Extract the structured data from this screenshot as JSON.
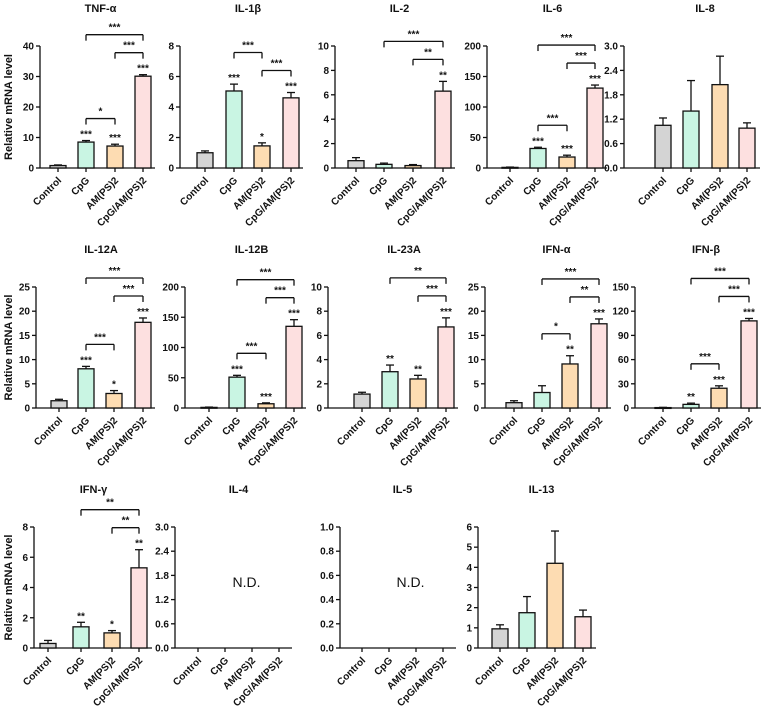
{
  "chart_data": [
    {
      "type": "bar",
      "title": "TNF-α",
      "ylim": [
        0,
        40
      ],
      "yticks": [
        "0",
        "10",
        "20",
        "30",
        "40"
      ],
      "values": [
        0.8,
        8.5,
        7.2,
        30.1
      ],
      "errors": [
        0.2,
        0.5,
        0.6,
        0.5
      ],
      "sig": [
        "",
        "***",
        "***",
        "***"
      ],
      "brackets": [
        [
          1,
          2,
          "*"
        ],
        [
          2,
          3,
          "***"
        ],
        [
          1,
          3,
          "***"
        ]
      ]
    },
    {
      "type": "bar",
      "title": "IL-1β",
      "ylim": [
        0,
        8
      ],
      "yticks": [
        "0",
        "2",
        "4",
        "6",
        "8"
      ],
      "values": [
        1.0,
        5.05,
        1.45,
        4.6
      ],
      "errors": [
        0.12,
        0.45,
        0.2,
        0.35
      ],
      "sig": [
        "",
        "***",
        "*",
        "***"
      ],
      "brackets": [
        [
          2,
          3,
          "***"
        ],
        [
          1,
          2,
          "***"
        ]
      ]
    },
    {
      "type": "bar",
      "title": "IL-2",
      "ylim": [
        0,
        10
      ],
      "yticks": [
        "0",
        "2",
        "4",
        "6",
        "8",
        "10"
      ],
      "values": [
        0.6,
        0.3,
        0.2,
        6.3
      ],
      "errors": [
        0.25,
        0.1,
        0.08,
        0.8
      ],
      "sig": [
        "",
        "",
        "",
        "**"
      ],
      "brackets": [
        [
          2,
          3,
          "**"
        ],
        [
          1,
          3,
          "***"
        ]
      ]
    },
    {
      "type": "bar",
      "title": "IL-6",
      "ylim": [
        0,
        200
      ],
      "yticks": [
        "0",
        "50",
        "100",
        "150",
        "200"
      ],
      "values": [
        1,
        32,
        18,
        131
      ],
      "errors": [
        0.5,
        2,
        3,
        5
      ],
      "sig": [
        "",
        "***",
        "***",
        "***"
      ],
      "brackets": [
        [
          1,
          2,
          "***"
        ],
        [
          2,
          3,
          "***"
        ],
        [
          1,
          3,
          "***"
        ]
      ]
    },
    {
      "type": "bar",
      "title": "IL-8",
      "ylim": [
        0,
        3
      ],
      "yticks": [
        "0.0",
        "0.6",
        "1.2",
        "1.8",
        "2.4",
        "3.0"
      ],
      "values": [
        1.05,
        1.4,
        2.05,
        0.98
      ],
      "errors": [
        0.18,
        0.75,
        0.7,
        0.13
      ],
      "sig": [
        "",
        "",
        "",
        ""
      ],
      "brackets": []
    },
    {
      "type": "bar",
      "title": "IL-12A",
      "ylim": [
        0,
        25
      ],
      "yticks": [
        "0",
        "5",
        "10",
        "15",
        "20",
        "25"
      ],
      "values": [
        1.5,
        8.1,
        3.0,
        17.7
      ],
      "errors": [
        0.3,
        0.5,
        0.6,
        0.9
      ],
      "sig": [
        "",
        "***",
        "*",
        "***"
      ],
      "brackets": [
        [
          1,
          2,
          "***"
        ],
        [
          2,
          3,
          "***"
        ],
        [
          1,
          3,
          "***"
        ]
      ]
    },
    {
      "type": "bar",
      "title": "IL-12B",
      "ylim": [
        0,
        200
      ],
      "yticks": [
        "0",
        "50",
        "100",
        "150",
        "200"
      ],
      "values": [
        1,
        51,
        7,
        135
      ],
      "errors": [
        0.5,
        3,
        1.5,
        11
      ],
      "sig": [
        "",
        "***",
        "***",
        "***"
      ],
      "brackets": [
        [
          1,
          2,
          "***"
        ],
        [
          2,
          3,
          "***"
        ],
        [
          1,
          3,
          "***"
        ]
      ]
    },
    {
      "type": "bar",
      "title": "IL-23A",
      "ylim": [
        0,
        10
      ],
      "yticks": [
        "0",
        "2",
        "4",
        "6",
        "8",
        "10"
      ],
      "values": [
        1.15,
        3.0,
        2.4,
        6.7
      ],
      "errors": [
        0.15,
        0.55,
        0.3,
        0.75
      ],
      "sig": [
        "",
        "**",
        "**",
        "***"
      ],
      "brackets": [
        [
          2,
          3,
          "***"
        ],
        [
          1,
          3,
          "**"
        ]
      ]
    },
    {
      "type": "bar",
      "title": "IFN-α",
      "ylim": [
        0,
        25
      ],
      "yticks": [
        "0",
        "5",
        "10",
        "15",
        "20",
        "25"
      ],
      "values": [
        1.1,
        3.2,
        9.1,
        17.4
      ],
      "errors": [
        0.4,
        1.4,
        1.7,
        1.0
      ],
      "sig": [
        "",
        "",
        "**",
        "***"
      ],
      "brackets": [
        [
          1,
          2,
          "*"
        ],
        [
          2,
          3,
          "**"
        ],
        [
          1,
          3,
          "***"
        ]
      ]
    },
    {
      "type": "bar",
      "title": "IFN-β",
      "ylim": [
        0,
        150
      ],
      "yticks": [
        "0",
        "30",
        "60",
        "90",
        "120",
        "150"
      ],
      "values": [
        0.5,
        4.5,
        24.5,
        108
      ],
      "errors": [
        0.3,
        1.5,
        3,
        3
      ],
      "sig": [
        "",
        "**",
        "***",
        "***"
      ],
      "brackets": [
        [
          1,
          2,
          "***"
        ],
        [
          2,
          3,
          "***"
        ],
        [
          1,
          3,
          "***"
        ]
      ]
    },
    {
      "type": "bar",
      "title": "IFN-γ",
      "ylim": [
        0,
        8
      ],
      "yticks": [
        "0",
        "2",
        "4",
        "6",
        "8"
      ],
      "values": [
        0.3,
        1.4,
        1.0,
        5.3
      ],
      "errors": [
        0.2,
        0.3,
        0.15,
        1.2
      ],
      "sig": [
        "",
        "**",
        "*",
        "**"
      ],
      "brackets": [
        [
          2,
          3,
          "**"
        ],
        [
          1,
          3,
          "**"
        ]
      ]
    },
    {
      "type": "bar",
      "title": "IL-4",
      "ylim": [
        0,
        3
      ],
      "yticks": [
        "0.0",
        "0.6",
        "1.2",
        "1.8",
        "2.4",
        "3.0"
      ],
      "values": [],
      "errors": [],
      "sig": [],
      "brackets": [],
      "annotation": "N.D."
    },
    {
      "type": "bar",
      "title": "IL-5",
      "ylim": [
        0,
        1
      ],
      "yticks": [
        "0.0",
        "0.2",
        "0.4",
        "0.6",
        "0.8",
        "1.0"
      ],
      "values": [],
      "errors": [],
      "sig": [],
      "brackets": [],
      "annotation": "N.D."
    },
    {
      "type": "bar",
      "title": "IL-13",
      "ylim": [
        0,
        6
      ],
      "yticks": [
        "0",
        "1",
        "2",
        "3",
        "4",
        "5",
        "6"
      ],
      "values": [
        0.95,
        1.75,
        4.2,
        1.55
      ],
      "errors": [
        0.2,
        0.8,
        1.6,
        0.33
      ],
      "sig": [
        "",
        "",
        "",
        ""
      ],
      "brackets": []
    }
  ],
  "categories": [
    "Control",
    "CpG",
    "AM(PS)2",
    "CpG/AM(PS)2"
  ],
  "ylabel": "Relative mRNA level",
  "colors": {
    "Control": "#d4d4d4",
    "CpG": "#c9f5e3",
    "AM(PS)2": "#fddcb2",
    "CpG/AM(PS)2": "#fde0e0"
  }
}
